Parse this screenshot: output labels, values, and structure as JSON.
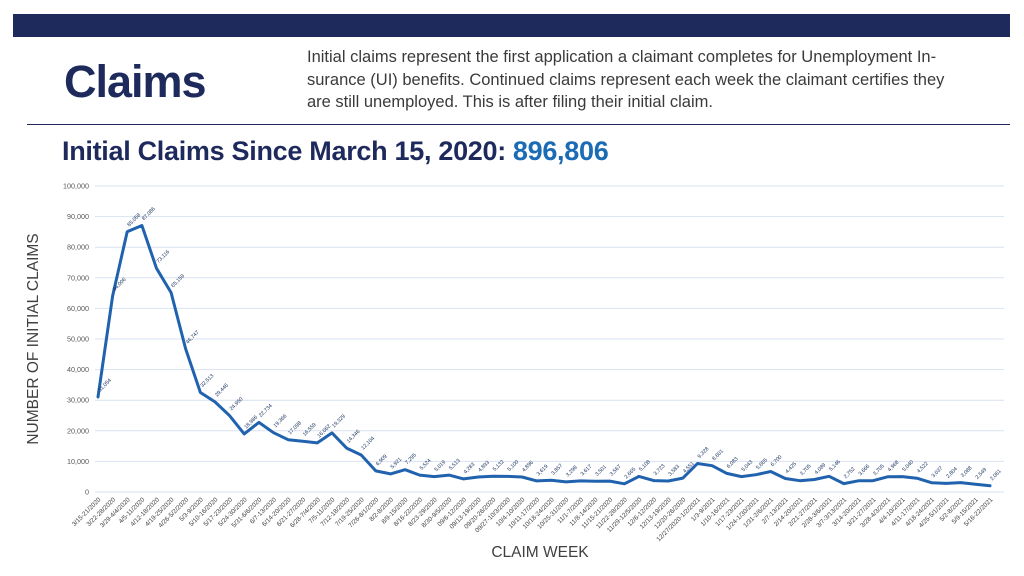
{
  "header": {
    "title": "Claims",
    "description": "Initial claims represent the first application a claimant completes for Unemployment In-\nsurance (UI) benefits. Continued claims represent each week the claimant certifies they\nare still unemployed. This is after filing their initial claim."
  },
  "heading": {
    "prefix": "Initial Claims Since March 15, 2020:",
    "value": "896,806"
  },
  "colors": {
    "navy": "#1f2a5c",
    "accent_blue": "#1b6cb5",
    "line_blue": "#2062ae",
    "grid": "#d9e2f2",
    "axis_text": "#595959",
    "data_label_text": "#1f3864",
    "tick_text": "#404040"
  },
  "chart_data": {
    "type": "line",
    "title": "Initial Claims Since March 15, 2020: 896,806",
    "xlabel": "CLAIM WEEK",
    "ylabel": "NUMBER OF INITIAL CLAIMS",
    "ylim": [
      0,
      100000
    ],
    "grid": true,
    "legend": "none",
    "data_labels": true,
    "y_ticks": [
      "0",
      "10,000",
      "20,000",
      "30,000",
      "40,000",
      "50,000",
      "60,000",
      "70,000",
      "80,000",
      "90,000",
      "100,000"
    ],
    "categories": [
      "3/15-21/2020",
      "3/22-28/2020",
      "3/29-4/4/2020",
      "4/5-11/2020",
      "4/12-18/2020",
      "4/19-25/2020",
      "4/26-5/2/2020",
      "5/3-9/2020",
      "5/10-16/2020",
      "5/17-23/2020",
      "5/24-30/2020",
      "5/31-6/6/2020",
      "6/7-13/2020",
      "6/14-20/2020",
      "6/21-27/2020",
      "6/28-7/4/2020",
      "7/5-11/2020",
      "7/12-18/2020",
      "7/19-25/2020",
      "7/26-8/1/2020",
      "8/2-8/2020",
      "8/9-15/2020",
      "8/16-22/2020",
      "8/23-29/2020",
      "8/30-9/5/2020",
      "09/6-12/2020",
      "09/13-19/2020",
      "09/20-26/2020",
      "09/27-10/3/2020",
      "10/4-10/2020",
      "10/11-17/2020",
      "10/18-24/2020",
      "10/25-31/2020",
      "11/1-7/2020",
      "11/8-14/2020",
      "11/15-21/2020",
      "11/22-28/2020",
      "11/29-12/5/2020",
      "12/6-12/2020",
      "12/13-19/2020",
      "12/20-26/2020",
      "12/27/2020-1/2/2021",
      "1/3-9/2021",
      "1/10-16/2021",
      "1/17-23/2021",
      "1/24-1/30/2021",
      "1/31-2/6/2021",
      "2/7-13/2021",
      "2/14-20/2021",
      "2/21-27/2021",
      "2/28-3/6/2021",
      "3/7-3/13/2021",
      "3/14-20/2021",
      "3/21-27/2021",
      "3/28-4/3/2021",
      "4/4-10/2021",
      "4/11-17/2021",
      "4/18-24/2021",
      "4/25-5/1/2021",
      "5/2-8/2021",
      "5/9-15/2021",
      "5/16-22/2021"
    ],
    "values": [
      31054,
      64006,
      85058,
      87086,
      73116,
      65159,
      46747,
      32513,
      29446,
      24950,
      18986,
      22734,
      19366,
      17098,
      16559,
      16062,
      19329,
      14346,
      12104,
      6909,
      5921,
      7295,
      5524,
      5019,
      5513,
      4283,
      4893,
      5132,
      5100,
      4896,
      3619,
      3857,
      3298,
      3617,
      3501,
      3567,
      2665,
      5108,
      3723,
      3583,
      4551,
      9328,
      8601,
      6083,
      5043,
      5665,
      6700,
      4425,
      3705,
      4089,
      5146,
      2752,
      3666,
      3705,
      4968,
      5040,
      4522,
      3037,
      2804,
      3088,
      2549,
      2061
    ]
  }
}
